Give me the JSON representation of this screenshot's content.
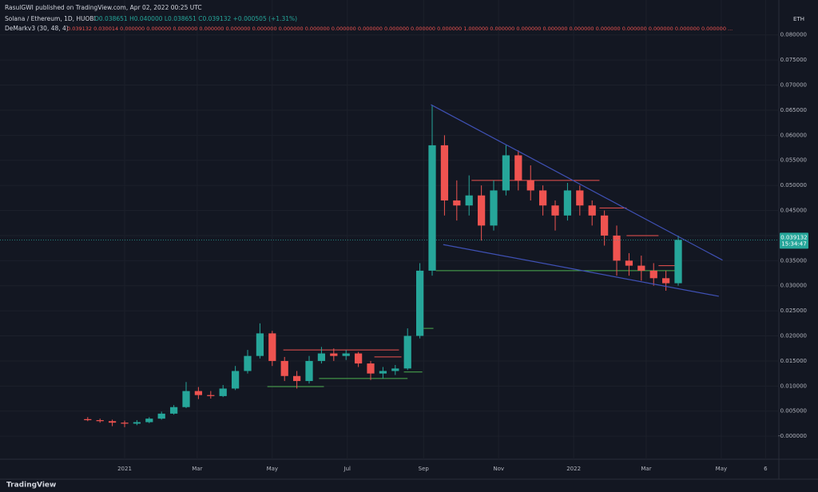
{
  "chart_data": {
    "type": "candlestick",
    "title": "RasulGWI published on TradingView.com, Apr 02, 2022 00:25 UTC",
    "subtitle": "Solana / Ethereum, 1D, HUOBI",
    "ohlc_text": "O0.038651 H0.040000 L0.038651 C0.039132 +0.000505 (+1.31%)",
    "indicator": "DeMarkv3 (30, 48, 4)",
    "indicator_values": "0.039132 0.030014 0.000000 0.000000 0.000000 0.000000 0.000000 0.000000 0.000000 0.000000 0.000000 0.000000 0.000000 0.000000 0.000000 1.000000 0.000000 0.000000 0.000000 0.000000 0.000000 0.000000 0.000000 0.000000 0.000000 ...",
    "unit": "ETH",
    "price_timer": "15:34:47",
    "brand": "TradingView",
    "up_color": "#26a69a",
    "down_color": "#ef5350",
    "grid": true,
    "x": [
      -30,
      -20,
      -10,
      0,
      10,
      20,
      30,
      40,
      50,
      60,
      70,
      80,
      90,
      100,
      110,
      120,
      130,
      140,
      150,
      160,
      170,
      180,
      190,
      200,
      210,
      220,
      230,
      240,
      250,
      260,
      270,
      280,
      290,
      300,
      310,
      320,
      330,
      340,
      350,
      360,
      370,
      380,
      390,
      400,
      410,
      420,
      430,
      440,
      450
    ],
    "open": [
      0.0034,
      0.0032,
      0.003,
      0.0027,
      0.0025,
      0.0028,
      0.0035,
      0.0045,
      0.0058,
      0.009,
      0.0082,
      0.008,
      0.0095,
      0.013,
      0.016,
      0.0205,
      0.015,
      0.012,
      0.011,
      0.015,
      0.0165,
      0.016,
      0.0165,
      0.0145,
      0.0125,
      0.013,
      0.0135,
      0.02,
      0.033,
      0.058,
      0.047,
      0.046,
      0.048,
      0.042,
      0.049,
      0.056,
      0.051,
      0.049,
      0.046,
      0.044,
      0.049,
      0.046,
      0.044,
      0.04,
      0.035,
      0.034,
      0.033,
      0.0315,
      0.0305
    ],
    "high": [
      0.0038,
      0.0035,
      0.0033,
      0.0031,
      0.0032,
      0.0038,
      0.0049,
      0.0062,
      0.0108,
      0.0098,
      0.009,
      0.0102,
      0.014,
      0.0172,
      0.0225,
      0.021,
      0.0158,
      0.013,
      0.016,
      0.0178,
      0.0175,
      0.0172,
      0.0168,
      0.015,
      0.0138,
      0.0142,
      0.0215,
      0.0345,
      0.066,
      0.06,
      0.051,
      0.052,
      0.05,
      0.051,
      0.058,
      0.057,
      0.054,
      0.05,
      0.047,
      0.0505,
      0.05,
      0.047,
      0.045,
      0.042,
      0.0365,
      0.036,
      0.0345,
      0.033,
      0.04
    ],
    "low": [
      0.003,
      0.0027,
      0.002,
      0.0018,
      0.0022,
      0.0026,
      0.0033,
      0.0043,
      0.0056,
      0.0074,
      0.0075,
      0.0078,
      0.0092,
      0.0125,
      0.0155,
      0.014,
      0.011,
      0.0095,
      0.0105,
      0.0145,
      0.015,
      0.0152,
      0.0138,
      0.0112,
      0.0115,
      0.0122,
      0.0132,
      0.0195,
      0.032,
      0.044,
      0.043,
      0.044,
      0.039,
      0.041,
      0.048,
      0.049,
      0.047,
      0.044,
      0.041,
      0.043,
      0.044,
      0.042,
      0.038,
      0.032,
      0.032,
      0.031,
      0.03,
      0.029,
      0.03
    ],
    "close": [
      0.0032,
      0.003,
      0.0027,
      0.0025,
      0.0028,
      0.0035,
      0.0045,
      0.0058,
      0.009,
      0.0082,
      0.008,
      0.0095,
      0.013,
      0.016,
      0.0205,
      0.015,
      0.012,
      0.011,
      0.015,
      0.0165,
      0.016,
      0.0165,
      0.0145,
      0.0125,
      0.013,
      0.0135,
      0.02,
      0.033,
      0.058,
      0.047,
      0.046,
      0.048,
      0.042,
      0.049,
      0.056,
      0.051,
      0.049,
      0.046,
      0.044,
      0.049,
      0.046,
      0.044,
      0.04,
      0.035,
      0.034,
      0.033,
      0.0315,
      0.0305,
      0.039132
    ],
    "trendlines": [
      {
        "color": "#3f51b5",
        "x": [
          249,
          486
        ],
        "y": [
          0.0661,
          0.0351
        ]
      },
      {
        "color": "#3f51b5",
        "x": [
          259,
          483
        ],
        "y": [
          0.0382,
          0.0279
        ]
      }
    ],
    "levels": [
      {
        "color": "#ef5350",
        "x": [
          282,
          386
        ],
        "y": 0.051
      },
      {
        "color": "#ef5350",
        "x": [
          386,
          408
        ],
        "y": 0.0455
      },
      {
        "color": "#ef5350",
        "x": [
          408,
          434
        ],
        "y": 0.04
      },
      {
        "color": "#ef5350",
        "x": [
          434,
          448
        ],
        "y": 0.034
      },
      {
        "color": "#4caf50",
        "x": [
          253,
          451
        ],
        "y": 0.033
      },
      {
        "color": "#ef5350",
        "x": [
          129,
          223
        ],
        "y": 0.0172
      },
      {
        "color": "#ef5350",
        "x": [
          203,
          225
        ],
        "y": 0.0158
      },
      {
        "color": "#4caf50",
        "x": [
          158,
          230
        ],
        "y": 0.0115
      },
      {
        "color": "#4caf50",
        "x": [
          116,
          162
        ],
        "y": 0.0099
      },
      {
        "color": "#4caf50",
        "x": [
          227,
          242
        ],
        "y": 0.0128
      },
      {
        "color": "#4caf50",
        "x": [
          243,
          251
        ],
        "y": 0.0215
      }
    ],
    "xlim": [
      -101.3,
      531.8
    ],
    "xticks": [
      {
        "value": 0,
        "label": "2021"
      },
      {
        "value": 59,
        "label": "Mar"
      },
      {
        "value": 120,
        "label": "May"
      },
      {
        "value": 181,
        "label": "Jul"
      },
      {
        "value": 243,
        "label": "Sep"
      },
      {
        "value": 304,
        "label": "Nov"
      },
      {
        "value": 365,
        "label": "2022"
      },
      {
        "value": 424,
        "label": "Mar"
      },
      {
        "value": 485,
        "label": "May"
      },
      {
        "value": 521,
        "label": "6"
      }
    ],
    "ylim": [
      -0.0038,
      0.0841
    ],
    "yticks": [
      {
        "value": 0,
        "label": "-0.000000"
      },
      {
        "value": 0.005,
        "label": "0.005000"
      },
      {
        "value": 0.01,
        "label": "0.010000"
      },
      {
        "value": 0.015,
        "label": "0.015000"
      },
      {
        "value": 0.02,
        "label": "0.020000"
      },
      {
        "value": 0.025,
        "label": "0.025000"
      },
      {
        "value": 0.03,
        "label": "0.030000"
      },
      {
        "value": 0.035,
        "label": "0.035000"
      },
      {
        "value": 0.04,
        "label": "0.040000"
      },
      {
        "value": 0.045,
        "label": "0.045000"
      },
      {
        "value": 0.05,
        "label": "0.050000"
      },
      {
        "value": 0.055,
        "label": "0.055000"
      },
      {
        "value": 0.06,
        "label": "0.060000"
      },
      {
        "value": 0.065,
        "label": "0.065000"
      },
      {
        "value": 0.07,
        "label": "0.070000"
      },
      {
        "value": 0.075,
        "label": "0.075000"
      },
      {
        "value": 0.08,
        "label": "0.080000"
      }
    ]
  }
}
